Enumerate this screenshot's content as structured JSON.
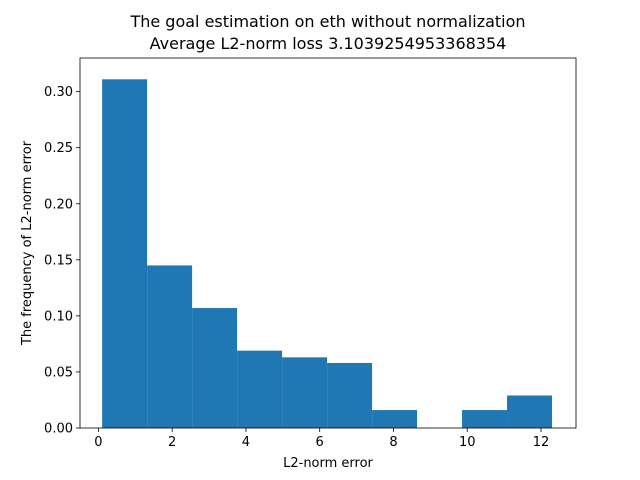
{
  "chart_data": {
    "type": "bar",
    "title": "The goal estimation on eth without normalization",
    "subtitle": "Average L2-norm loss 3.1039254953368354",
    "xlabel": "L2-norm error",
    "ylabel": "The frequency of L2-norm error",
    "xlim": [
      -0.5,
      12.95
    ],
    "ylim": [
      0,
      0.33
    ],
    "xticks": [
      0,
      2,
      4,
      6,
      8,
      10,
      12
    ],
    "yticks": [
      0.0,
      0.05,
      0.1,
      0.15,
      0.2,
      0.25,
      0.3
    ],
    "ytick_labels": [
      "0.00",
      "0.05",
      "0.10",
      "0.15",
      "0.20",
      "0.25",
      "0.30"
    ],
    "bin_edges": [
      0.1,
      1.32,
      2.54,
      3.76,
      4.98,
      6.2,
      7.42,
      8.64,
      9.86,
      11.08,
      12.3
    ],
    "values": [
      0.311,
      0.145,
      0.107,
      0.069,
      0.063,
      0.058,
      0.016,
      0.0,
      0.016,
      0.029
    ],
    "bar_color": "#1f77b4",
    "grid": false,
    "legend": false
  }
}
